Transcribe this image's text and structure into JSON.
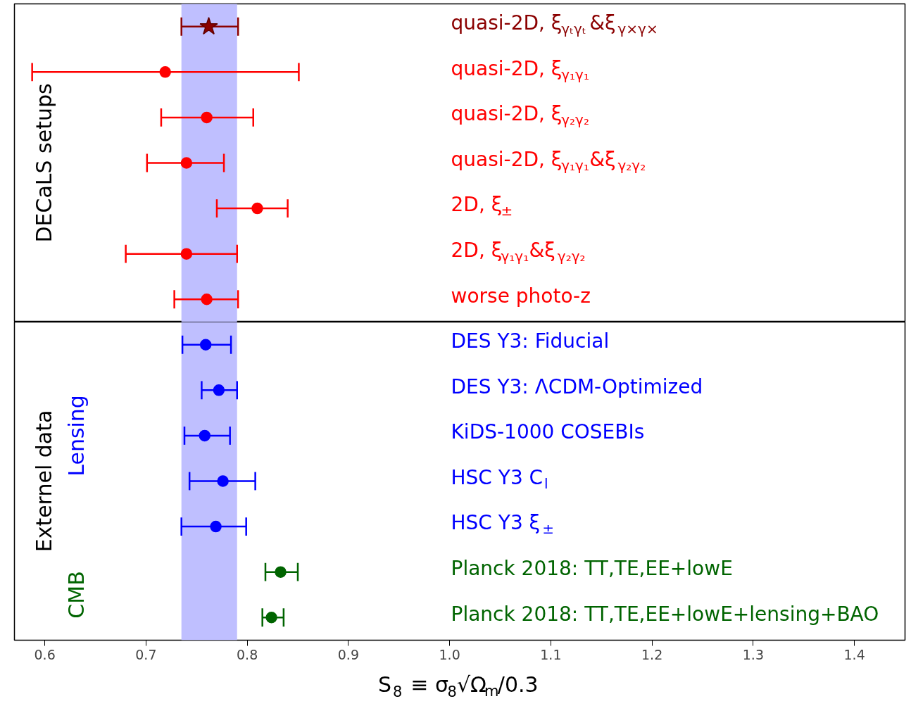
{
  "chart_data": [
    {
      "type": "scatter",
      "orientation": "horizontal",
      "grid": false,
      "tick_labels": false,
      "xlim": [
        0.57,
        1.45
      ],
      "xticks": [
        0.6,
        0.7,
        0.8,
        0.9,
        1.0,
        1.1,
        1.2,
        1.3,
        1.4
      ],
      "categories": [
        "quasi-2D, ξ$_{γₜγₜ}$&ξ$_{γ×γ×}$",
        "quasi-2D, ξ$_{γ₁γ₁}$",
        "quasi-2D, ξ$_{γ₂γ₂}$",
        "quasi-2D, ξ$_{γ₁γ₁}$&ξ$_{γ₂γ₂}$",
        "2D, ξ$_{±}$",
        "2D, ξ$_{γ₁γ₁}$&ξ$_{γ₂γ₂}$",
        "worse photo-z"
      ],
      "series": [
        {
          "color": "#8b0000",
          "marker": "star",
          "values": [
            0.762,
            null,
            null,
            null,
            null,
            null,
            null
          ],
          "errors": [
            [
              0.735,
              0.791
            ],
            null,
            null,
            null,
            null,
            null,
            null
          ]
        },
        {
          "color": "#ff0000",
          "marker": "circle",
          "values": [
            null,
            0.719,
            0.76,
            0.74,
            0.81,
            0.74,
            0.76
          ],
          "errors": [
            null,
            [
              0.5875,
              0.851
            ],
            [
              0.715,
              0.806
            ],
            [
              0.701,
              0.777
            ],
            [
              0.77,
              0.84
            ],
            [
              0.68,
              0.79
            ],
            [
              0.728,
              0.791
            ]
          ]
        }
      ],
      "bands": [
        {
          "axis": "x",
          "from": 0.735,
          "to": 0.79,
          "color": "#bfbfff"
        }
      ],
      "annotations": [
        "DECaLS setups"
      ]
    },
    {
      "type": "scatter",
      "orientation": "horizontal",
      "grid": false,
      "xlim": [
        0.57,
        1.45
      ],
      "xticks": [
        0.6,
        0.7,
        0.8,
        0.9,
        {
          "value": 1.0,
          "label": "1.0"
        },
        1.1,
        1.2,
        1.3,
        1.4
      ],
      "xlabel": "S$_{8}$ ≡ σ$_{8}$√Ω$_{m}$/0.3",
      "categories": [
        "DES Y3: Fiducial",
        "DES Y3: ΛCDM-Optimized",
        "KiDS-1000 COSEBIs",
        "HSC Y3 C$_{l}$",
        "HSC Y3 ξ$_{±}$",
        "Planck 2018: TT,TE,EE+lowE",
        "Planck 2018: TT,TE,EE+lowE+lensing+BAO"
      ],
      "series": [
        {
          "name": "Lensing",
          "color": "#0000ff",
          "marker": "circle",
          "values": [
            0.759,
            0.772,
            0.758,
            0.776,
            0.769,
            null,
            null
          ],
          "errors": [
            [
              0.736,
              0.784
            ],
            [
              0.755,
              0.79
            ],
            [
              0.738,
              0.783
            ],
            [
              0.743,
              0.808
            ],
            [
              0.735,
              0.799
            ],
            null,
            null
          ]
        },
        {
          "name": "CMB",
          "color": "#006400",
          "marker": "circle",
          "values": [
            null,
            null,
            null,
            null,
            null,
            0.833,
            0.824
          ],
          "errors": [
            null,
            null,
            null,
            null,
            null,
            [
              0.818,
              0.85
            ],
            [
              0.815,
              0.836
            ]
          ]
        }
      ],
      "bands": [
        {
          "axis": "x",
          "from": 0.735,
          "to": 0.79,
          "color": "#bfbfff"
        }
      ],
      "annotations": [
        "Externel data"
      ]
    }
  ]
}
